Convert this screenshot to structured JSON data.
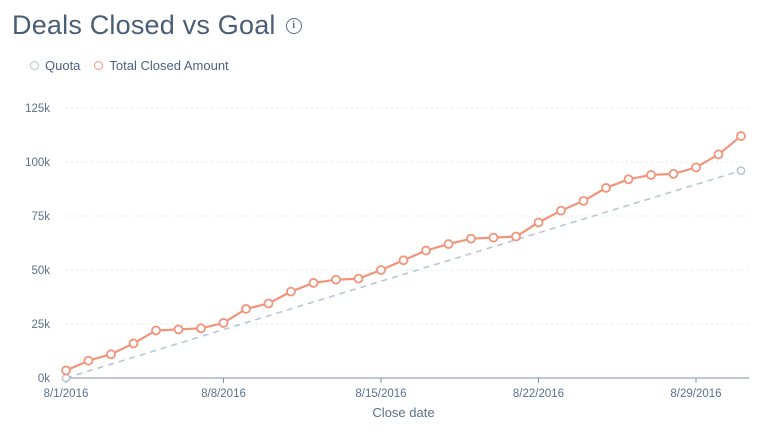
{
  "header": {
    "title": "Deals Closed vs Goal",
    "info_icon": "info-icon"
  },
  "colors": {
    "quota": "#b9c6d6",
    "total": "#f2947a",
    "grid": "#e6ebf1",
    "axis": "#7f91a8"
  },
  "chart_data": {
    "type": "line",
    "title": "Deals Closed vs Goal",
    "xlabel": "Close date",
    "ylabel": "",
    "x_tick_labels": [
      "8/1/2016",
      "8/8/2016",
      "8/15/2016",
      "8/22/2016",
      "8/29/2016"
    ],
    "y_tick_labels": [
      "0k",
      "25k",
      "50k",
      "75k",
      "100k",
      "125k"
    ],
    "ylim": [
      0,
      125000
    ],
    "x": [
      "2016-08-01",
      "2016-08-02",
      "2016-08-03",
      "2016-08-04",
      "2016-08-05",
      "2016-08-06",
      "2016-08-07",
      "2016-08-08",
      "2016-08-09",
      "2016-08-10",
      "2016-08-11",
      "2016-08-12",
      "2016-08-13",
      "2016-08-14",
      "2016-08-15",
      "2016-08-16",
      "2016-08-17",
      "2016-08-18",
      "2016-08-19",
      "2016-08-20",
      "2016-08-21",
      "2016-08-22",
      "2016-08-23",
      "2016-08-24",
      "2016-08-25",
      "2016-08-26",
      "2016-08-27",
      "2016-08-28",
      "2016-08-29",
      "2016-08-30",
      "2016-08-31"
    ],
    "grid": true,
    "legend_position": "top-left",
    "series": [
      {
        "name": "Quota",
        "style": "dashed",
        "points": [
          {
            "x": "2016-08-01",
            "y": 0
          },
          {
            "x": "2016-08-31",
            "y": 96000
          }
        ]
      },
      {
        "name": "Total Closed Amount",
        "style": "solid",
        "values": [
          3500,
          8000,
          11000,
          16000,
          22000,
          22500,
          23000,
          25500,
          32000,
          34500,
          40000,
          44000,
          45500,
          46000,
          50000,
          54500,
          59000,
          62000,
          64500,
          65000,
          65500,
          72000,
          77500,
          82000,
          88000,
          92000,
          94000,
          94500,
          97500,
          103500,
          112000
        ]
      }
    ]
  }
}
